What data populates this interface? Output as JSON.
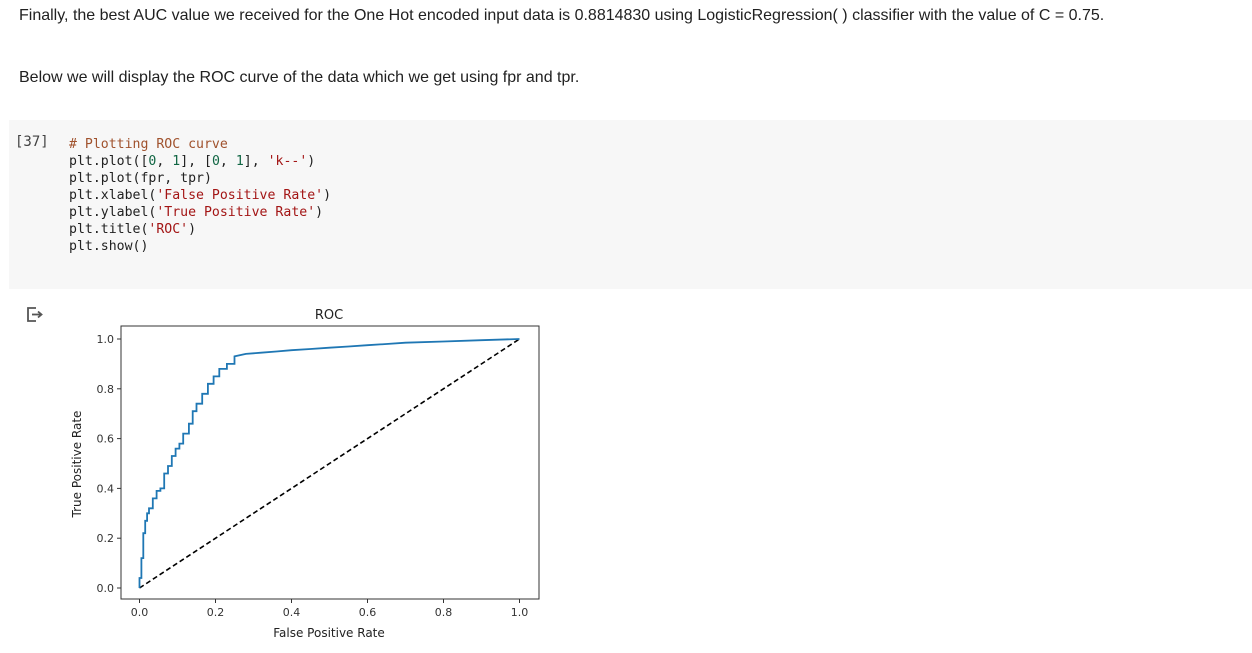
{
  "paragraphs": {
    "p1": "Finally, the best AUC value we received for the One Hot encoded input data is 0.8814830 using LogisticRegression( ) classifier with the value of C = 0.75.",
    "p2": "Below we will display the ROC curve of the data which we get using fpr and tpr."
  },
  "code_cell": {
    "execution_count": "[37]",
    "lines": [
      {
        "parts": [
          {
            "t": "# Plotting ROC curve",
            "k": "comment"
          }
        ]
      },
      {
        "parts": [
          {
            "t": "plt.plot([",
            "k": "plain"
          },
          {
            "t": "0",
            "k": "num"
          },
          {
            "t": ", ",
            "k": "plain"
          },
          {
            "t": "1",
            "k": "num"
          },
          {
            "t": "], [",
            "k": "plain"
          },
          {
            "t": "0",
            "k": "num"
          },
          {
            "t": ", ",
            "k": "plain"
          },
          {
            "t": "1",
            "k": "num"
          },
          {
            "t": "], ",
            "k": "plain"
          },
          {
            "t": "'k--'",
            "k": "str"
          },
          {
            "t": ")",
            "k": "plain"
          }
        ]
      },
      {
        "parts": [
          {
            "t": "plt.plot(fpr, tpr)",
            "k": "plain"
          }
        ]
      },
      {
        "parts": [
          {
            "t": "plt.xlabel(",
            "k": "plain"
          },
          {
            "t": "'False Positive Rate'",
            "k": "str"
          },
          {
            "t": ")",
            "k": "plain"
          }
        ]
      },
      {
        "parts": [
          {
            "t": "plt.ylabel(",
            "k": "plain"
          },
          {
            "t": "'True Positive Rate'",
            "k": "str"
          },
          {
            "t": ")",
            "k": "plain"
          }
        ]
      },
      {
        "parts": [
          {
            "t": "plt.title(",
            "k": "plain"
          },
          {
            "t": "'ROC'",
            "k": "str"
          },
          {
            "t": ")",
            "k": "plain"
          }
        ]
      },
      {
        "parts": [
          {
            "t": "plt.show()",
            "k": "plain"
          }
        ]
      }
    ]
  },
  "output": {
    "icon": "output-redirect-icon"
  },
  "colors": {
    "curve": "#1f77b4",
    "diagonal": "#000000",
    "cell_background": "#f7f7f7"
  },
  "chart_data": {
    "type": "line",
    "title": "ROC",
    "xlabel": "False Positive Rate",
    "ylabel": "True Positive Rate",
    "xlim": [
      0.0,
      1.0
    ],
    "ylim": [
      0.0,
      1.0
    ],
    "xticks": [
      "0.0",
      "0.2",
      "0.4",
      "0.6",
      "0.8",
      "1.0"
    ],
    "yticks": [
      "0.0",
      "0.2",
      "0.4",
      "0.6",
      "0.8",
      "1.0"
    ],
    "grid": false,
    "series": [
      {
        "style": "dashed",
        "color": "#000000",
        "x": [
          0.0,
          1.0
        ],
        "y": [
          0.0,
          1.0
        ]
      },
      {
        "style": "solid-step",
        "color": "#1f77b4",
        "x": [
          0.0,
          0.0,
          0.005,
          0.005,
          0.01,
          0.01,
          0.015,
          0.015,
          0.02,
          0.02,
          0.025,
          0.025,
          0.035,
          0.035,
          0.045,
          0.045,
          0.055,
          0.055,
          0.065,
          0.065,
          0.075,
          0.075,
          0.085,
          0.085,
          0.095,
          0.095,
          0.105,
          0.105,
          0.115,
          0.115,
          0.13,
          0.13,
          0.14,
          0.14,
          0.15,
          0.15,
          0.165,
          0.165,
          0.18,
          0.18,
          0.195,
          0.195,
          0.21,
          0.21,
          0.23,
          0.23,
          0.25,
          0.25,
          0.28,
          0.32,
          0.36,
          0.4,
          0.45,
          0.5,
          0.55,
          0.6,
          0.65,
          0.7,
          0.8,
          0.9,
          1.0
        ],
        "y": [
          0.0,
          0.04,
          0.04,
          0.12,
          0.12,
          0.22,
          0.22,
          0.27,
          0.27,
          0.3,
          0.3,
          0.32,
          0.32,
          0.36,
          0.36,
          0.39,
          0.39,
          0.4,
          0.4,
          0.46,
          0.46,
          0.49,
          0.49,
          0.53,
          0.53,
          0.56,
          0.56,
          0.58,
          0.58,
          0.62,
          0.62,
          0.66,
          0.66,
          0.71,
          0.71,
          0.74,
          0.74,
          0.78,
          0.78,
          0.82,
          0.82,
          0.85,
          0.85,
          0.88,
          0.88,
          0.9,
          0.9,
          0.93,
          0.94,
          0.945,
          0.95,
          0.955,
          0.96,
          0.965,
          0.97,
          0.975,
          0.98,
          0.985,
          0.99,
          0.995,
          1.0
        ]
      }
    ]
  }
}
